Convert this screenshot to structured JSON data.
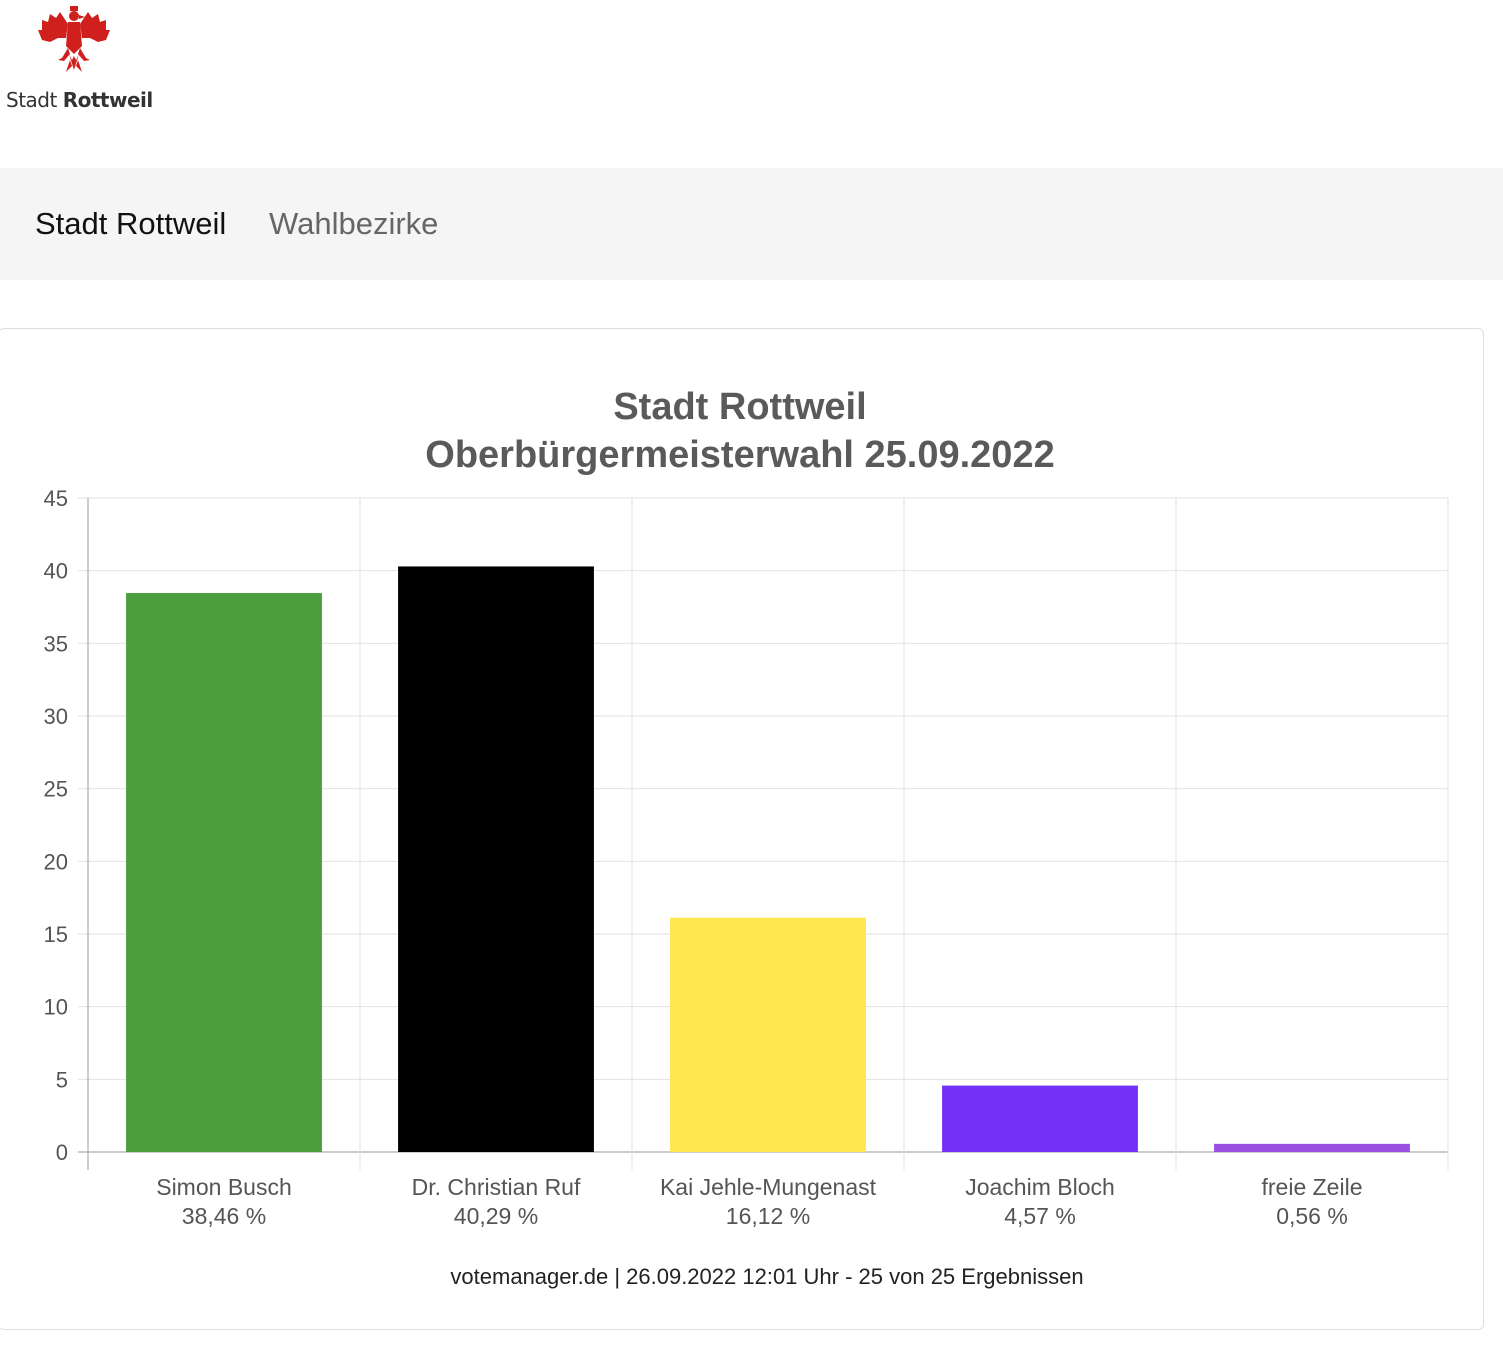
{
  "header": {
    "logo_text_regular": "Stadt",
    "logo_text_bold": "Rottweil"
  },
  "nav": {
    "items": [
      {
        "label": "Stadt Rottweil",
        "active": true
      },
      {
        "label": "Wahlbezirke",
        "active": false
      }
    ]
  },
  "colors": {
    "logo_red": "#d0201e",
    "grid": "#e2e2e2",
    "axis": "#999999",
    "text": "#555555",
    "title": "#5a5a5a"
  },
  "chart_data": {
    "type": "bar",
    "title_lines": [
      "Stadt Rottweil",
      "Oberbürgermeisterwahl 25.09.2022"
    ],
    "categories": [
      "Simon Busch",
      "Dr. Christian Ruf",
      "Kai Jehle-Mungenast",
      "Joachim Bloch",
      "freie Zeile"
    ],
    "value_labels": [
      "38,46 %",
      "40,29 %",
      "16,12 %",
      "4,57 %",
      "0,56 %"
    ],
    "values": [
      38.46,
      40.29,
      16.12,
      4.57,
      0.56
    ],
    "bar_colors": [
      "#4a9e3c",
      "#000000",
      "#fde74c",
      "#7530f5",
      "#9b4fe0"
    ],
    "ylim": [
      0,
      45
    ],
    "yticks": [
      0,
      5,
      10,
      15,
      20,
      25,
      30,
      35,
      40,
      45
    ],
    "grid": true,
    "xlabel": "",
    "ylabel": "",
    "footer": "votemanager.de | 26.09.2022 12:01 Uhr - 25 von 25 Ergebnissen"
  }
}
